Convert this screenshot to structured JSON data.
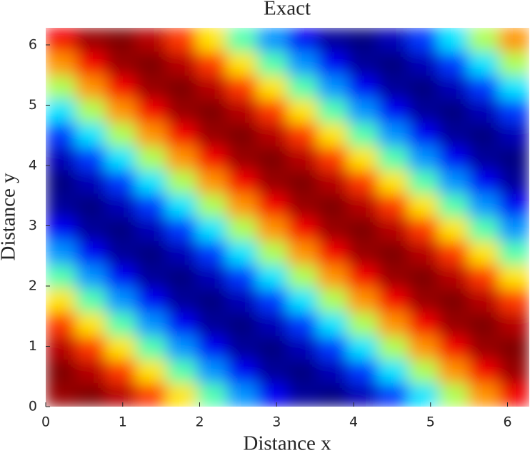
{
  "chart_data": {
    "type": "heatmap",
    "title": "Exact",
    "xlabel": "Distance x",
    "ylabel": "Distance y",
    "colormap": "jet",
    "zlim": [
      -1,
      1
    ],
    "xlim": [
      0,
      6.2832
    ],
    "ylim": [
      0,
      6.2832
    ],
    "xticks": [
      0,
      1,
      2,
      3,
      4,
      5,
      6
    ],
    "yticks": [
      0,
      1,
      2,
      3,
      4,
      5,
      6
    ],
    "x": [
      0.2,
      0.59,
      0.98,
      1.37,
      1.77,
      2.16,
      2.55,
      2.95,
      3.34,
      3.73,
      4.12,
      4.52,
      4.91,
      5.3,
      5.69,
      6.09
    ],
    "y": [
      0.2,
      0.59,
      0.98,
      1.37,
      1.77,
      2.16,
      2.55,
      2.95,
      3.34,
      3.73,
      4.12,
      4.52,
      4.91,
      5.3,
      5.69,
      6.09
    ],
    "z": [
      [
        0.95,
        1.0,
        0.89,
        0.64,
        0.3,
        -0.09,
        -0.46,
        -0.77,
        -0.95,
        -1.0,
        -0.89,
        -0.64,
        -0.3,
        0.09,
        0.46,
        0.77
      ],
      [
        1.0,
        0.89,
        0.64,
        0.3,
        -0.09,
        -0.46,
        -0.77,
        -0.95,
        -1.0,
        -0.89,
        -0.64,
        -0.3,
        0.09,
        0.46,
        0.77,
        0.95
      ],
      [
        0.89,
        0.64,
        0.3,
        -0.09,
        -0.46,
        -0.77,
        -0.95,
        -1.0,
        -0.89,
        -0.64,
        -0.3,
        0.09,
        0.46,
        0.77,
        0.95,
        1.0
      ],
      [
        0.64,
        0.3,
        -0.09,
        -0.46,
        -0.77,
        -0.95,
        -1.0,
        -0.89,
        -0.64,
        -0.3,
        0.09,
        0.46,
        0.77,
        0.95,
        1.0,
        0.89
      ],
      [
        0.3,
        -0.09,
        -0.46,
        -0.77,
        -0.95,
        -1.0,
        -0.89,
        -0.64,
        -0.3,
        0.09,
        0.46,
        0.77,
        0.95,
        1.0,
        0.89,
        0.64
      ],
      [
        -0.09,
        -0.46,
        -0.77,
        -0.95,
        -1.0,
        -0.89,
        -0.64,
        -0.3,
        0.09,
        0.46,
        0.77,
        0.95,
        1.0,
        0.89,
        0.64,
        0.3
      ],
      [
        -0.46,
        -0.77,
        -0.95,
        -1.0,
        -0.89,
        -0.64,
        -0.3,
        0.09,
        0.46,
        0.77,
        0.95,
        1.0,
        0.89,
        0.64,
        0.3,
        -0.09
      ],
      [
        -0.77,
        -0.95,
        -1.0,
        -0.89,
        -0.64,
        -0.3,
        0.09,
        0.46,
        0.77,
        0.95,
        1.0,
        0.89,
        0.64,
        0.3,
        -0.09,
        -0.46
      ],
      [
        -0.95,
        -1.0,
        -0.89,
        -0.64,
        -0.3,
        0.09,
        0.46,
        0.77,
        0.95,
        1.0,
        0.89,
        0.64,
        0.3,
        -0.09,
        -0.46,
        -0.77
      ],
      [
        -1.0,
        -0.89,
        -0.64,
        -0.3,
        0.09,
        0.46,
        0.77,
        0.95,
        1.0,
        0.89,
        0.64,
        0.3,
        -0.09,
        -0.46,
        -0.77,
        -0.95
      ],
      [
        -0.89,
        -0.64,
        -0.3,
        0.09,
        0.46,
        0.77,
        0.95,
        1.0,
        0.89,
        0.64,
        0.3,
        -0.09,
        -0.46,
        -0.77,
        -0.95,
        -1.0
      ],
      [
        -0.64,
        -0.3,
        0.09,
        0.46,
        0.77,
        0.95,
        1.0,
        0.89,
        0.64,
        0.3,
        -0.09,
        -0.46,
        -0.77,
        -0.95,
        -1.0,
        -0.89
      ],
      [
        -0.3,
        0.09,
        0.46,
        0.77,
        0.95,
        1.0,
        0.89,
        0.64,
        0.3,
        -0.09,
        -0.46,
        -0.77,
        -0.95,
        -1.0,
        -0.89,
        -0.64
      ],
      [
        0.09,
        0.46,
        0.77,
        0.95,
        1.0,
        0.89,
        0.64,
        0.3,
        -0.09,
        -0.46,
        -0.77,
        -0.95,
        -1.0,
        -0.89,
        -0.64,
        -0.3
      ],
      [
        0.46,
        0.77,
        0.95,
        1.0,
        0.89,
        0.64,
        0.3,
        -0.09,
        -0.46,
        -0.77,
        -0.95,
        -1.0,
        -0.89,
        -0.64,
        -0.3,
        0.09
      ],
      [
        0.77,
        0.95,
        1.0,
        0.89,
        0.64,
        0.3,
        -0.09,
        -0.46,
        -0.77,
        -0.95,
        -1.0,
        -0.89,
        -0.64,
        -0.3,
        0.09,
        0.46
      ]
    ]
  }
}
